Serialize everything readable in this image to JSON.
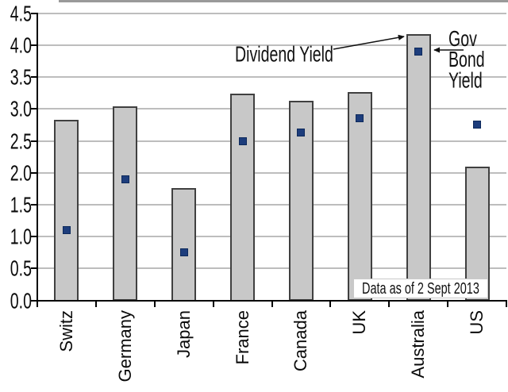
{
  "chart_data": {
    "type": "bar",
    "title": "",
    "xlabel": "",
    "ylabel": "",
    "categories": [
      "Switz",
      "Germany",
      "Japan",
      "France",
      "Canada",
      "UK",
      "Australia",
      "US"
    ],
    "series": [
      {
        "name": "Dividend Yield",
        "type": "bar",
        "values": [
          2.83,
          3.04,
          1.76,
          3.24,
          3.13,
          3.27,
          4.17,
          2.1
        ]
      },
      {
        "name": "Gov Bond Yield",
        "type": "scatter",
        "values": [
          1.1,
          1.9,
          0.75,
          2.5,
          2.63,
          2.85,
          3.9,
          2.75
        ]
      }
    ],
    "ylim": [
      0,
      4.5
    ],
    "ytick_step": 0.5,
    "ytick_labels": [
      "0.0",
      "0.5",
      "1.0",
      "1.5",
      "2.0",
      "2.5",
      "3.0",
      "3.5",
      "4.0",
      "4.5"
    ],
    "grid": true,
    "legend_position": "inline-annotations",
    "annotations": {
      "dividend_label": "Dividend Yield",
      "gov_bond_label_lines": [
        "Gov",
        "Bond",
        "Yield"
      ],
      "data_note": "Data as of 2 Sept 2013"
    }
  },
  "colors": {
    "bar_fill": "#c8c8c8",
    "bar_border": "#404040",
    "marker_fill": "#1d3d7c",
    "marker_border": "#0e2a5c",
    "gridline": "#bdbdbd",
    "axis": "#000000",
    "arrow": "#111111",
    "text": "#0a0a0a",
    "top_edge": "#9a9a9a"
  }
}
